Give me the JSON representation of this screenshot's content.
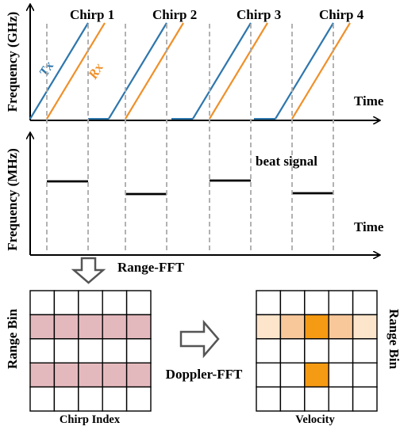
{
  "top_plot": {
    "ylabel": "Frequency (GHz)",
    "xlabel": "Time",
    "chirps": [
      "Chirp 1",
      "Chirp 2",
      "Chirp 3",
      "Chirp 4"
    ],
    "tx_label": "Tx",
    "rx_label": "Rx"
  },
  "bottom_plot": {
    "ylabel": "Frequency (MHz)",
    "xlabel": "Time",
    "annotation": "beat signal"
  },
  "range_fft_label": "Range-FFT",
  "doppler_fft_label": "Doppler-FFT",
  "left_grid": {
    "ylabel": "Range Bin",
    "xlabel": "Chirp Index",
    "rows": 5,
    "cols": 5,
    "highlight_rows": [
      1,
      3
    ]
  },
  "right_grid": {
    "ylabel": "Range Bin",
    "xlabel": "Velocity",
    "rows": 5,
    "cols": 5,
    "cells": [
      {
        "row": 1,
        "col": 0,
        "level": "light"
      },
      {
        "row": 1,
        "col": 1,
        "level": "medium"
      },
      {
        "row": 1,
        "col": 2,
        "level": "peak"
      },
      {
        "row": 1,
        "col": 3,
        "level": "medium"
      },
      {
        "row": 1,
        "col": 4,
        "level": "light"
      },
      {
        "row": 3,
        "col": 2,
        "level": "peak"
      }
    ]
  },
  "colors": {
    "tx": "#2e77ad",
    "rx": "#f0902a",
    "guide": "#aaaaaa",
    "left_highlight": "#e4b9bd",
    "right_light": "#fde5cb",
    "right_medium": "#f8c89b",
    "right_peak": "#f59a13"
  }
}
